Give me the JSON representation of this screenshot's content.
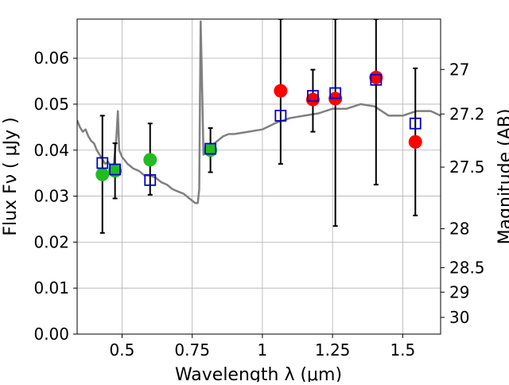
{
  "chart_data": {
    "type": "scatter",
    "xlabel": "Wavelength  λ (μm)",
    "ylabel": "Flux  Fν  ( μJy )",
    "ylabel_right": "Magnitude (AB)",
    "xlim": [
      0.34,
      1.635
    ],
    "ylim": [
      0,
      0.0685
    ],
    "xticks": [
      0.5,
      0.75,
      1.0,
      1.25,
      1.5
    ],
    "xtick_labels": [
      "0.5",
      "0.75",
      "1",
      "1.25",
      "1.5"
    ],
    "yticks": [
      0,
      0.01,
      0.02,
      0.03,
      0.04,
      0.05,
      0.06
    ],
    "ytick_labels": [
      "0.00",
      "0.01",
      "0.02",
      "0.03",
      "0.04",
      "0.05",
      "0.06"
    ],
    "right_ticks": [
      {
        "mag": 27,
        "label": "27"
      },
      {
        "mag": 27.2,
        "label": "27.2"
      },
      {
        "mag": 27.5,
        "label": "27.5"
      },
      {
        "mag": 28,
        "label": "28"
      },
      {
        "mag": 28.5,
        "label": "28.5"
      },
      {
        "mag": 29,
        "label": "29"
      },
      {
        "mag": 30,
        "label": "30"
      }
    ],
    "grid": true,
    "colors": {
      "model": "#808080",
      "model_points": "#0000cc",
      "observed_green": "#22bb22",
      "observed_red": "#ff0000",
      "errorbar": "#000000"
    },
    "model_spectrum": {
      "x": [
        0.34,
        0.35,
        0.36,
        0.37,
        0.38,
        0.39,
        0.4,
        0.41,
        0.42,
        0.43,
        0.44,
        0.45,
        0.46,
        0.47,
        0.48,
        0.485,
        0.49,
        0.5,
        0.52,
        0.54,
        0.56,
        0.58,
        0.6,
        0.62,
        0.64,
        0.66,
        0.68,
        0.7,
        0.72,
        0.74,
        0.76,
        0.77,
        0.775,
        0.78,
        0.785,
        0.79,
        0.8,
        0.82,
        0.84,
        0.86,
        0.88,
        0.9,
        0.95,
        1.0,
        1.05,
        1.1,
        1.15,
        1.2,
        1.25,
        1.3,
        1.35,
        1.4,
        1.45,
        1.5,
        1.55,
        1.6,
        1.635
      ],
      "y": [
        0.0465,
        0.045,
        0.044,
        0.0445,
        0.043,
        0.042,
        0.0415,
        0.04,
        0.039,
        0.038,
        0.037,
        0.0375,
        0.0365,
        0.0365,
        0.043,
        0.0485,
        0.04,
        0.0385,
        0.037,
        0.036,
        0.0355,
        0.0345,
        0.0345,
        0.034,
        0.033,
        0.0325,
        0.0315,
        0.031,
        0.0305,
        0.0295,
        0.0285,
        0.0285,
        0.0315,
        0.068,
        0.055,
        0.039,
        0.04,
        0.041,
        0.042,
        0.043,
        0.0435,
        0.0435,
        0.044,
        0.0445,
        0.046,
        0.047,
        0.0475,
        0.048,
        0.049,
        0.049,
        0.05,
        0.0495,
        0.0475,
        0.0475,
        0.0485,
        0.0485,
        0.0475
      ]
    },
    "series": [
      {
        "marker": "open-square",
        "x": [
          0.43,
          0.475,
          0.6,
          0.815,
          1.065,
          1.18,
          1.26,
          1.405,
          1.545
        ],
        "y": [
          0.0372,
          0.0358,
          0.0335,
          0.0403,
          0.0475,
          0.0518,
          0.0524,
          0.0553,
          0.0458
        ],
        "err_low": [
          0.022,
          0.0295,
          0.0303,
          0.0352,
          0.037,
          0.044,
          0.0235,
          0.0325,
          0.0258
        ],
        "err_high": [
          0.0475,
          0.0415,
          0.0458,
          0.0448,
          0.0685,
          0.0575,
          0.0685,
          0.0685,
          0.0578
        ]
      },
      {
        "marker": "filled-circle",
        "color_key": "observed_green",
        "x": [
          0.43,
          0.475,
          0.6,
          0.815
        ],
        "y": [
          0.0347,
          0.0355,
          0.0379,
          0.04
        ]
      },
      {
        "marker": "filled-circle",
        "color_key": "observed_red",
        "x": [
          1.065,
          1.18,
          1.26,
          1.405,
          1.545
        ],
        "y": [
          0.0529,
          0.051,
          0.0512,
          0.0558,
          0.0418
        ]
      }
    ]
  }
}
